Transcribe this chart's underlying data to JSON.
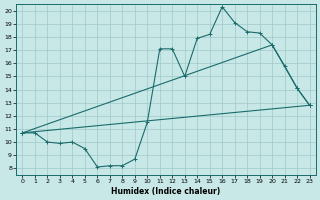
{
  "bg_color": "#c8e8e8",
  "line_color": "#1a6b6b",
  "grid_color": "#a0c8c8",
  "xlabel": "Humidex (Indice chaleur)",
  "xlim": [
    -0.5,
    23.5
  ],
  "ylim": [
    7.5,
    20.5
  ],
  "xticks": [
    0,
    1,
    2,
    3,
    4,
    5,
    6,
    7,
    8,
    9,
    10,
    11,
    12,
    13,
    14,
    15,
    16,
    17,
    18,
    19,
    20,
    21,
    22,
    23
  ],
  "yticks": [
    8,
    9,
    10,
    11,
    12,
    13,
    14,
    15,
    16,
    17,
    18,
    19,
    20
  ],
  "line1_x": [
    0,
    1,
    2,
    3,
    4,
    5,
    6,
    7,
    8,
    9,
    10,
    11,
    12,
    13,
    14,
    15,
    16,
    17,
    18,
    19,
    20,
    21,
    22,
    23
  ],
  "line1_y": [
    10.7,
    10.7,
    10.0,
    9.9,
    10.0,
    9.5,
    8.1,
    8.2,
    8.2,
    8.7,
    11.5,
    17.1,
    17.1,
    15.0,
    17.9,
    18.2,
    20.3,
    19.1,
    18.4,
    18.3,
    17.4,
    15.8,
    14.1,
    12.8
  ],
  "line2_x": [
    0,
    20,
    22,
    23
  ],
  "line2_y": [
    10.7,
    17.4,
    14.1,
    12.8
  ],
  "line3_x": [
    0,
    23
  ],
  "line3_y": [
    10.7,
    12.8
  ],
  "marker": "+"
}
